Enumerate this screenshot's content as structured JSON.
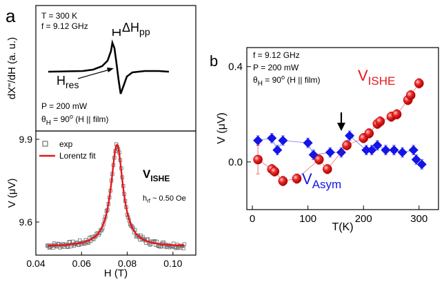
{
  "chart_data": [
    {
      "panel_label": "a",
      "type": "line",
      "ylabel": "dX\"/dH (a. u.)",
      "annotations": {
        "params": [
          "T = 300 K",
          "f = 9.12 GHz"
        ],
        "conditions_line1": "P = 200 mW",
        "conditions_line2_sym": "θ",
        "conditions_line2_sub": "H",
        "conditions_line2_rest": " = 90",
        "conditions_line2_sup": "o",
        "conditions_line2_tail": " (H || film)",
        "dhpp_main": "ΔH",
        "dhpp_sub": "pp",
        "hres_main": "H",
        "hres_sub": "res"
      },
      "curve_description": "derivative FMR absorption lineshape",
      "color": "#000000"
    },
    {
      "type": "scatter",
      "xlabel": "H (T)",
      "ylabel": "V (μV)",
      "xlim": [
        0.04,
        0.11
      ],
      "ylim": [
        9.48,
        9.93
      ],
      "x_ticks": [
        "0.04",
        "0.06",
        "0.08",
        "0.10"
      ],
      "y_ticks": [
        "9.6",
        "9.9"
      ],
      "legend": {
        "placement": "top-left",
        "entries": [
          {
            "label": "exp",
            "marker": "open-square",
            "color": "#555555"
          },
          {
            "label": "Lorentz fit",
            "marker": "line",
            "color": "#e8141b"
          }
        ]
      },
      "title_main": "V",
      "title_sub": "ISHE",
      "hrf_main": "h",
      "hrf_sub": "rf",
      "hrf_rest": " ~ 0.50 Oe",
      "lorentz": {
        "center": 0.0755,
        "hwhm": 0.0032,
        "baseline": 9.51,
        "amplitude": 0.37
      },
      "exp_x_range": [
        0.045,
        0.105
      ],
      "exp_points": 140
    },
    {
      "panel_label": "b",
      "type": "scatter",
      "xlabel": "T(K)",
      "ylabel": "V (μV)",
      "xlim": [
        -10,
        335
      ],
      "ylim": [
        -0.2,
        0.48
      ],
      "x_ticks": [
        "0",
        "100",
        "200",
        "300"
      ],
      "y_ticks": [
        "0.0",
        "0.4"
      ],
      "params": [
        "f = 9.12 GHz",
        "P = 200 mW"
      ],
      "param_angle": {
        "sym": "θ",
        "sub": "H",
        "rest": " = 90",
        "sup": "o",
        "tail": " (H || film)"
      },
      "series": [
        {
          "name_main": "V",
          "name_sub": "ISHE",
          "color": "#e8141b",
          "marker": "sphere",
          "x": [
            10,
            35,
            40,
            55,
            80,
            120,
            135,
            170,
            200,
            210,
            225,
            230,
            250,
            260,
            280,
            285,
            300
          ],
          "y": [
            0.01,
            -0.03,
            -0.04,
            -0.08,
            -0.07,
            0.01,
            -0.03,
            0.07,
            0.1,
            0.12,
            0.16,
            0.17,
            0.19,
            0.2,
            0.26,
            0.28,
            0.33
          ],
          "err": [
            0.06,
            0.02,
            0.02,
            0.02,
            0.02,
            0.02,
            0.02,
            0.02,
            0.02,
            0.02,
            0.02,
            0.02,
            0.02,
            0.02,
            0.02,
            0.02,
            0.02
          ]
        },
        {
          "name_main": "V",
          "name_sub": "Asym",
          "color": "#1414e6",
          "marker": "diamond",
          "x": [
            10,
            35,
            45,
            55,
            100,
            110,
            140,
            160,
            175,
            205,
            215,
            225,
            240,
            255,
            270,
            290,
            295,
            305
          ],
          "y": [
            0.09,
            0.1,
            0.05,
            0.09,
            0.08,
            0.03,
            0.04,
            0.04,
            0.11,
            0.05,
            0.05,
            0.07,
            0.05,
            0.05,
            0.04,
            0.05,
            0.01,
            -0.01
          ],
          "err": [
            0.02,
            0.02,
            0.02,
            0.02,
            0.02,
            0.02,
            0.02,
            0.02,
            0.02,
            0.02,
            0.02,
            0.02,
            0.02,
            0.02,
            0.02,
            0.02,
            0.02,
            0.02
          ]
        }
      ],
      "arrow_at_T": 150
    }
  ]
}
